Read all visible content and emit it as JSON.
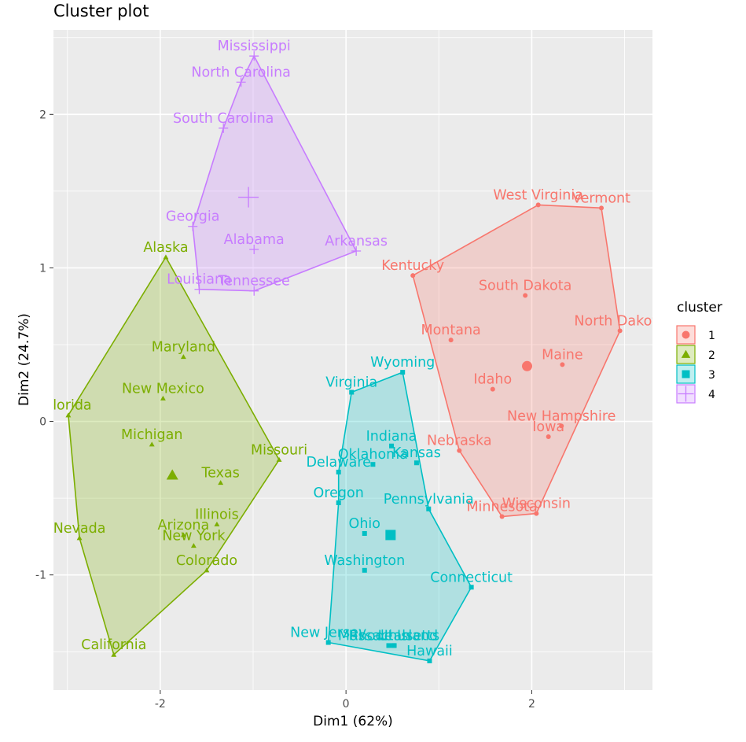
{
  "chart_data": {
    "type": "scatter",
    "title": "Cluster plot",
    "xlabel": "Dim1 (62%)",
    "ylabel": "Dim2 (24.7%)",
    "xlim": [
      -3.15,
      3.3
    ],
    "ylim": [
      -1.75,
      2.55
    ],
    "x_ticks": [
      {
        "value": -2,
        "label": "-2"
      },
      {
        "value": 0,
        "label": "0"
      },
      {
        "value": 2,
        "label": "2"
      }
    ],
    "y_ticks": [
      {
        "value": -1,
        "label": "-1"
      },
      {
        "value": 0,
        "label": "0"
      },
      {
        "value": 1,
        "label": "1"
      },
      {
        "value": 2,
        "label": "2"
      }
    ],
    "grid": true,
    "background": "#ebebeb",
    "legend": {
      "title": "cluster",
      "position": "right",
      "entries": [
        {
          "label": "1",
          "color": "#f8766d",
          "shape": "circle"
        },
        {
          "label": "2",
          "color": "#7cae00",
          "shape": "triangle"
        },
        {
          "label": "3",
          "color": "#00bfc4",
          "shape": "square"
        },
        {
          "label": "4",
          "color": "#c77cff",
          "shape": "cross"
        }
      ]
    },
    "clusters": [
      {
        "id": "1",
        "color": "#f8766d",
        "shape": "circle",
        "center": [
          1.95,
          0.36
        ],
        "hull": [
          [
            0.72,
            0.95
          ],
          [
            2.07,
            1.41
          ],
          [
            2.75,
            1.39
          ],
          [
            2.95,
            0.59
          ],
          [
            2.05,
            -0.6
          ],
          [
            1.68,
            -0.62
          ],
          [
            1.22,
            -0.19
          ]
        ],
        "points": [
          {
            "name": "West Virginia",
            "x": 2.07,
            "y": 1.41
          },
          {
            "name": "Vermont",
            "x": 2.75,
            "y": 1.39
          },
          {
            "name": "Kentucky",
            "x": 0.72,
            "y": 0.95
          },
          {
            "name": "South Dakota",
            "x": 1.93,
            "y": 0.82
          },
          {
            "name": "North Dakota",
            "x": 2.95,
            "y": 0.59
          },
          {
            "name": "Montana",
            "x": 1.13,
            "y": 0.53
          },
          {
            "name": "Maine",
            "x": 2.33,
            "y": 0.37
          },
          {
            "name": "Idaho",
            "x": 1.58,
            "y": 0.21
          },
          {
            "name": "New Hampshire",
            "x": 2.32,
            "y": -0.03
          },
          {
            "name": "Iowa",
            "x": 2.18,
            "y": -0.1
          },
          {
            "name": "Nebraska",
            "x": 1.22,
            "y": -0.19
          },
          {
            "name": "Wisconsin",
            "x": 2.05,
            "y": -0.6
          },
          {
            "name": "Minnesota",
            "x": 1.68,
            "y": -0.62
          }
        ]
      },
      {
        "id": "2",
        "color": "#7cae00",
        "shape": "triangle",
        "center": [
          -1.87,
          -0.35
        ],
        "hull": [
          [
            -1.94,
            1.07
          ],
          [
            -0.72,
            -0.25
          ],
          [
            -1.5,
            -0.97
          ],
          [
            -2.5,
            -1.52
          ],
          [
            -2.87,
            -0.76
          ],
          [
            -2.99,
            0.04
          ]
        ],
        "points": [
          {
            "name": "Alaska",
            "x": -1.94,
            "y": 1.07
          },
          {
            "name": "Maryland",
            "x": -1.75,
            "y": 0.42
          },
          {
            "name": "New Mexico",
            "x": -1.97,
            "y": 0.15
          },
          {
            "name": "Florida",
            "x": -2.99,
            "y": 0.04
          },
          {
            "name": "Michigan",
            "x": -2.09,
            "y": -0.15
          },
          {
            "name": "Missouri",
            "x": -0.72,
            "y": -0.25
          },
          {
            "name": "Texas",
            "x": -1.35,
            "y": -0.4
          },
          {
            "name": "Illinois",
            "x": -1.39,
            "y": -0.67
          },
          {
            "name": "Arizona",
            "x": -1.75,
            "y": -0.74
          },
          {
            "name": "New York",
            "x": -1.64,
            "y": -0.81
          },
          {
            "name": "Nevada",
            "x": -2.87,
            "y": -0.76
          },
          {
            "name": "Colorado",
            "x": -1.5,
            "y": -0.97
          },
          {
            "name": "California",
            "x": -2.5,
            "y": -1.52
          }
        ]
      },
      {
        "id": "3",
        "color": "#00bfc4",
        "shape": "square",
        "center": [
          0.48,
          -0.74
        ],
        "hull": [
          [
            0.06,
            0.19
          ],
          [
            0.61,
            0.32
          ],
          [
            0.89,
            -0.57
          ],
          [
            1.35,
            -1.08
          ],
          [
            0.9,
            -1.56
          ],
          [
            -0.19,
            -1.44
          ],
          [
            -0.08,
            -0.53
          ],
          [
            -0.08,
            -0.33
          ]
        ],
        "points": [
          {
            "name": "Wyoming",
            "x": 0.61,
            "y": 0.32
          },
          {
            "name": "Virginia",
            "x": 0.06,
            "y": 0.19
          },
          {
            "name": "Indiana",
            "x": 0.49,
            "y": -0.16
          },
          {
            "name": "Kansas",
            "x": 0.76,
            "y": -0.27
          },
          {
            "name": "Oklahoma",
            "x": 0.29,
            "y": -0.28
          },
          {
            "name": "Delaware",
            "x": -0.08,
            "y": -0.33
          },
          {
            "name": "Oregon",
            "x": -0.08,
            "y": -0.53
          },
          {
            "name": "Pennsylvania",
            "x": 0.89,
            "y": -0.57
          },
          {
            "name": "Ohio",
            "x": 0.2,
            "y": -0.73
          },
          {
            "name": "Washington",
            "x": 0.2,
            "y": -0.97
          },
          {
            "name": "Connecticut",
            "x": 1.35,
            "y": -1.08
          },
          {
            "name": "New Jersey",
            "x": -0.19,
            "y": -1.44
          },
          {
            "name": "Massachusetts",
            "x": 0.46,
            "y": -1.46
          },
          {
            "name": "Rhode Island",
            "x": 0.51,
            "y": -1.46
          },
          {
            "name": "Utah",
            "x": 0.52,
            "y": -1.46
          },
          {
            "name": "Hawaii",
            "x": 0.9,
            "y": -1.56
          }
        ]
      },
      {
        "id": "4",
        "color": "#c77cff",
        "shape": "cross",
        "center": [
          -1.05,
          1.46
        ],
        "hull": [
          [
            -0.99,
            2.38
          ],
          [
            0.11,
            1.11
          ],
          [
            -0.99,
            0.85
          ],
          [
            -1.58,
            0.86
          ],
          [
            -1.65,
            1.27
          ],
          [
            -1.32,
            1.91
          ],
          [
            -1.13,
            2.21
          ]
        ],
        "points": [
          {
            "name": "Mississippi",
            "x": -0.99,
            "y": 2.38
          },
          {
            "name": "North Carolina",
            "x": -1.13,
            "y": 2.21
          },
          {
            "name": "South Carolina",
            "x": -1.32,
            "y": 1.91
          },
          {
            "name": "Georgia",
            "x": -1.65,
            "y": 1.27
          },
          {
            "name": "Alabama",
            "x": -0.99,
            "y": 1.12
          },
          {
            "name": "Arkansas",
            "x": 0.11,
            "y": 1.11
          },
          {
            "name": "Louisiana",
            "x": -1.58,
            "y": 0.86
          },
          {
            "name": "Tennessee",
            "x": -0.99,
            "y": 0.85
          }
        ]
      }
    ]
  }
}
